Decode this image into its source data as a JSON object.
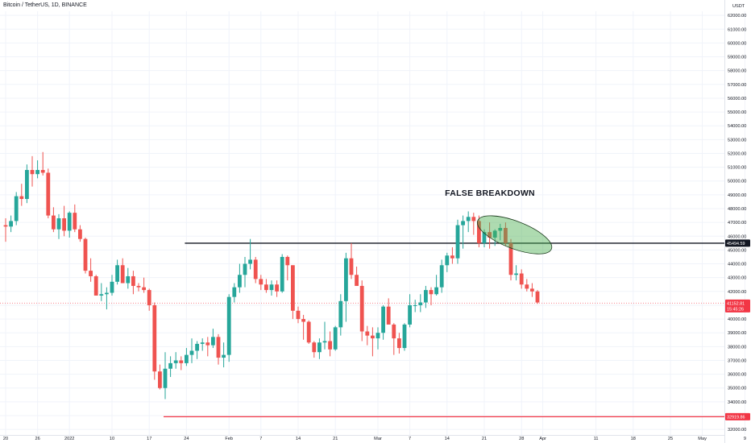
{
  "header": {
    "title": "Bitcoin / TetherUS, 1D, BINANCE"
  },
  "chart_data": {
    "type": "candlestick",
    "currency": "USDT",
    "ylim": [
      31600,
      62300
    ],
    "y_ticks": [
      32000,
      33000,
      34000,
      35000,
      36000,
      37000,
      38000,
      39000,
      40000,
      41000,
      42000,
      43000,
      44000,
      45000,
      46000,
      47000,
      48000,
      49000,
      50000,
      51000,
      52000,
      53000,
      54000,
      55000,
      56000,
      57000,
      58000,
      59000,
      60000,
      61000,
      62000
    ],
    "y_tick_labels": [
      "32000.00",
      "33000.00",
      "34000.00",
      "35000.00",
      "36000.00",
      "37000.00",
      "38000.00",
      "39000.00",
      "40000.00",
      "41000.00",
      "42000.00",
      "43000.00",
      "44000.00",
      "45000.00",
      "46000.00",
      "47000.00",
      "48000.00",
      "49000.00",
      "50000.00",
      "51000.00",
      "52000.00",
      "53000.00",
      "54000.00",
      "55000.00",
      "56000.00",
      "57000.00",
      "58000.00",
      "59000.00",
      "60000.00",
      "61000.00",
      "62000.00"
    ],
    "x_ticks": [
      {
        "label": "20",
        "idx": 0
      },
      {
        "label": "26",
        "idx": 6
      },
      {
        "label": "2022",
        "idx": 12
      },
      {
        "label": "10",
        "idx": 20
      },
      {
        "label": "17",
        "idx": 27
      },
      {
        "label": "24",
        "idx": 34
      },
      {
        "label": "Feb",
        "idx": 42
      },
      {
        "label": "7",
        "idx": 48
      },
      {
        "label": "14",
        "idx": 55
      },
      {
        "label": "21",
        "idx": 62
      },
      {
        "label": "Mar",
        "idx": 70
      },
      {
        "label": "7",
        "idx": 76
      },
      {
        "label": "14",
        "idx": 83
      },
      {
        "label": "21",
        "idx": 90
      },
      {
        "label": "28",
        "idx": 97
      },
      {
        "label": "Apr",
        "idx": 101
      },
      {
        "label": "11",
        "idx": 111
      },
      {
        "label": "18",
        "idx": 118
      },
      {
        "label": "25",
        "idx": 125
      },
      {
        "label": "May",
        "idx": 131
      },
      {
        "label": "9",
        "idx": 139
      }
    ],
    "candles": [
      [
        46800,
        47300,
        45600,
        46700
      ],
      [
        46700,
        47500,
        46300,
        47100
      ],
      [
        47100,
        49200,
        46800,
        48900
      ],
      [
        48900,
        49800,
        48200,
        48700
      ],
      [
        48700,
        51200,
        48400,
        50800
      ],
      [
        50800,
        51800,
        49600,
        50500
      ],
      [
        50500,
        51500,
        50200,
        50800
      ],
      [
        50800,
        52100,
        50400,
        50600
      ],
      [
        50600,
        50900,
        47300,
        47500
      ],
      [
        47500,
        48100,
        46300,
        46500
      ],
      [
        46500,
        47600,
        45800,
        47300
      ],
      [
        47300,
        48200,
        46000,
        46400
      ],
      [
        46400,
        47800,
        45900,
        47700
      ],
      [
        47700,
        48300,
        46300,
        46500
      ],
      [
        46500,
        46800,
        45600,
        45800
      ],
      [
        45800,
        45900,
        43300,
        43500
      ],
      [
        43500,
        44400,
        42700,
        43100
      ],
      [
        43100,
        43200,
        41700,
        41700
      ],
      [
        41700,
        42600,
        41300,
        41800
      ],
      [
        41800,
        42300,
        40700,
        41900
      ],
      [
        41900,
        43200,
        41700,
        42700
      ],
      [
        42700,
        44300,
        42500,
        43900
      ],
      [
        43900,
        44400,
        42600,
        42600
      ],
      [
        42600,
        43700,
        42200,
        43100
      ],
      [
        43100,
        43500,
        41800,
        42400
      ],
      [
        42400,
        42600,
        42000,
        42300
      ],
      [
        42300,
        43000,
        41900,
        42100
      ],
      [
        42100,
        42200,
        40600,
        41000
      ],
      [
        41000,
        41200,
        35600,
        36200
      ],
      [
        36200,
        36700,
        34900,
        35000
      ],
      [
        35000,
        37600,
        34200,
        36400
      ],
      [
        36400,
        37300,
        35800,
        36800
      ],
      [
        36800,
        37600,
        36400,
        37000
      ],
      [
        37000,
        37300,
        36300,
        36800
      ],
      [
        36800,
        37900,
        36600,
        37400
      ],
      [
        37400,
        38600,
        36800,
        37700
      ],
      [
        37700,
        38400,
        37100,
        38200
      ],
      [
        38200,
        38600,
        37700,
        38300
      ],
      [
        38300,
        38700,
        37300,
        38100
      ],
      [
        38100,
        39300,
        37900,
        38700
      ],
      [
        38700,
        38900,
        36700,
        37200
      ],
      [
        37200,
        38300,
        36500,
        37400
      ],
      [
        37400,
        41800,
        36900,
        41600
      ],
      [
        41600,
        42600,
        41200,
        42300
      ],
      [
        42300,
        44000,
        41900,
        43200
      ],
      [
        43200,
        44500,
        42300,
        44000
      ],
      [
        44000,
        45800,
        43600,
        44300
      ],
      [
        44300,
        44500,
        42600,
        42900
      ],
      [
        42900,
        43200,
        42100,
        42500
      ],
      [
        42500,
        42900,
        41900,
        42100
      ],
      [
        42100,
        42800,
        41700,
        42500
      ],
      [
        42500,
        42800,
        41600,
        42000
      ],
      [
        42000,
        44700,
        41900,
        44500
      ],
      [
        44500,
        44600,
        42800,
        43900
      ],
      [
        43900,
        43900,
        40000,
        40600
      ],
      [
        40600,
        40900,
        39700,
        40000
      ],
      [
        40000,
        40300,
        38500,
        39800
      ],
      [
        39800,
        39900,
        38200,
        38300
      ],
      [
        38300,
        38400,
        37200,
        37600
      ],
      [
        37600,
        38600,
        37100,
        38300
      ],
      [
        38300,
        39800,
        37800,
        38400
      ],
      [
        38400,
        39100,
        37300,
        37800
      ],
      [
        37800,
        39500,
        37700,
        39400
      ],
      [
        39400,
        41800,
        38800,
        41300
      ],
      [
        41300,
        44800,
        39800,
        44400
      ],
      [
        44400,
        45500,
        42900,
        43200
      ],
      [
        43200,
        43800,
        42600,
        42400
      ],
      [
        42400,
        42800,
        38400,
        39100
      ],
      [
        39100,
        39500,
        38100,
        38800
      ],
      [
        38800,
        39400,
        37300,
        38600
      ],
      [
        38600,
        39400,
        37800,
        39000
      ],
      [
        39000,
        41000,
        38500,
        40900
      ],
      [
        40900,
        41500,
        39800,
        39600
      ],
      [
        39600,
        39700,
        37400,
        38600
      ],
      [
        38600,
        39000,
        37500,
        37900
      ],
      [
        37900,
        39700,
        37700,
        39600
      ],
      [
        39600,
        41800,
        39400,
        41000
      ],
      [
        41000,
        41400,
        40500,
        41000
      ],
      [
        41000,
        41800,
        40500,
        41200
      ],
      [
        41200,
        42400,
        40800,
        42100
      ],
      [
        42100,
        42300,
        41000,
        41800
      ],
      [
        41800,
        43200,
        41700,
        42300
      ],
      [
        42300,
        44300,
        41900,
        43900
      ],
      [
        43900,
        44800,
        43400,
        44600
      ],
      [
        44600,
        45200,
        44000,
        44400
      ],
      [
        44400,
        47200,
        44000,
        46800
      ],
      [
        46800,
        47500,
        45100,
        47100
      ],
      [
        47100,
        47800,
        46300,
        47400
      ],
      [
        47400,
        47700,
        46100,
        47100
      ],
      [
        47100,
        47500,
        45200,
        45500
      ],
      [
        45500,
        46500,
        45200,
        46300
      ],
      [
        46300,
        47000,
        45100,
        45900
      ],
      [
        45900,
        46500,
        45300,
        46400
      ],
      [
        46400,
        46900,
        45700,
        46600
      ],
      [
        46600,
        47000,
        45300,
        45500
      ],
      [
        45500,
        45800,
        42800,
        43200
      ],
      [
        43200,
        43900,
        42800,
        43300
      ],
      [
        43300,
        43600,
        42200,
        42500
      ],
      [
        42500,
        42900,
        42000,
        42200
      ],
      [
        42200,
        42600,
        41600,
        42000
      ],
      [
        42000,
        42100,
        41100,
        41200
      ]
    ],
    "up_color": "#26a69a",
    "down_color": "#ef5350",
    "horizontal_lines": [
      {
        "value": 45494.59,
        "label": "45494.59",
        "color": "#131722"
      },
      {
        "value": 32919.86,
        "label": "32919.86",
        "color": "#f23645"
      }
    ],
    "current_price": {
      "value": 41152.81,
      "label": "41152.81",
      "countdown": "15:45:26",
      "color": "#f23645"
    },
    "annotation": "FALSE BREAKDOWN"
  }
}
